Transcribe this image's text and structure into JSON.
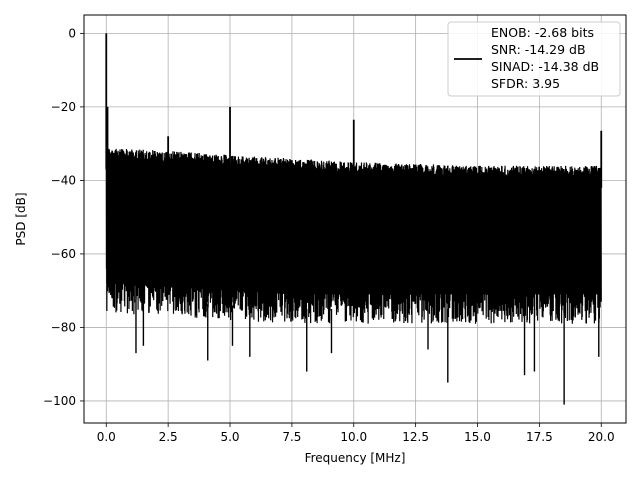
{
  "chart_data": {
    "type": "line",
    "title": "",
    "xlabel": "Frequency [MHz]",
    "ylabel": "PSD [dB]",
    "xlim": [
      -0.9,
      21.0
    ],
    "ylim": [
      -106,
      5
    ],
    "xticks": [
      0.0,
      2.5,
      5.0,
      7.5,
      10.0,
      12.5,
      15.0,
      17.5,
      20.0
    ],
    "xtick_labels": [
      "0.0",
      "2.5",
      "5.0",
      "7.5",
      "10.0",
      "12.5",
      "15.0",
      "17.5",
      "20.0"
    ],
    "yticks": [
      0,
      -20,
      -40,
      -60,
      -80,
      -100
    ],
    "ytick_labels": [
      "0",
      "−20",
      "−40",
      "−60",
      "−80",
      "−100"
    ],
    "grid": true,
    "legend_position": "top-right",
    "legend_lines": [
      "ENOB: -2.68 bits",
      "SNR: -14.29 dB",
      "SINAD: -14.38 dB",
      "SFDR: 3.95"
    ],
    "series_color": "#000000",
    "noise_floor": {
      "x_range": [
        0.0,
        20.0
      ],
      "upper_envelope_dB": [
        -31,
        -32,
        -33,
        -34,
        -35,
        -36,
        -36
      ],
      "lower_envelope_dB": [
        -72,
        -73,
        -74,
        -75,
        -75,
        -75,
        -75
      ],
      "envelope_x": [
        0.0,
        2.5,
        5.0,
        7.5,
        10.0,
        15.0,
        20.0
      ]
    },
    "peaks": [
      {
        "x": 0.0,
        "y": 0
      },
      {
        "x": 0.05,
        "y": -20
      },
      {
        "x": 2.5,
        "y": -28
      },
      {
        "x": 5.0,
        "y": -20
      },
      {
        "x": 10.0,
        "y": -23.5
      },
      {
        "x": 20.0,
        "y": -26.5
      }
    ],
    "dips": [
      {
        "x": 1.2,
        "y": -87
      },
      {
        "x": 1.5,
        "y": -85
      },
      {
        "x": 4.1,
        "y": -89
      },
      {
        "x": 5.1,
        "y": -85
      },
      {
        "x": 5.8,
        "y": -88
      },
      {
        "x": 8.1,
        "y": -92
      },
      {
        "x": 9.1,
        "y": -87
      },
      {
        "x": 13.0,
        "y": -86
      },
      {
        "x": 13.8,
        "y": -95
      },
      {
        "x": 16.9,
        "y": -93
      },
      {
        "x": 17.3,
        "y": -92
      },
      {
        "x": 18.5,
        "y": -101
      },
      {
        "x": 19.9,
        "y": -88
      }
    ]
  }
}
